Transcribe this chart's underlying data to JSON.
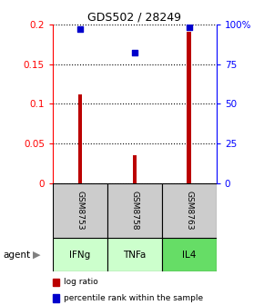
{
  "title": "GDS502 / 28249",
  "samples": [
    "GSM8753",
    "GSM8758",
    "GSM8763"
  ],
  "agents": [
    "IFNg",
    "TNFa",
    "IL4"
  ],
  "log_ratios": [
    0.112,
    0.035,
    0.191
  ],
  "percentile_ranks": [
    97.0,
    82.0,
    98.5
  ],
  "bar_color": "#bb0000",
  "dot_color": "#0000cc",
  "left_ylim": [
    0,
    0.2
  ],
  "right_ylim": [
    0,
    100
  ],
  "left_yticks": [
    0,
    0.05,
    0.1,
    0.15,
    0.2
  ],
  "left_yticklabels": [
    "0",
    "0.05",
    "0.1",
    "0.15",
    "0.2"
  ],
  "right_yticks": [
    0,
    25,
    50,
    75,
    100
  ],
  "right_yticklabels": [
    "0",
    "25",
    "50",
    "75",
    "100%"
  ],
  "agent_colors": [
    "#ccffcc",
    "#ccffcc",
    "#66dd66"
  ],
  "sample_box_color": "#cccccc",
  "legend_log_ratio": "log ratio",
  "legend_percentile": "percentile rank within the sample",
  "agent_label": "agent",
  "bar_width": 0.08
}
